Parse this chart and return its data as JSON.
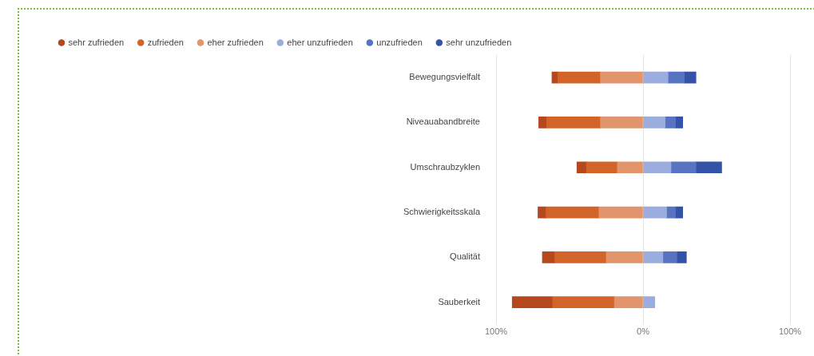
{
  "chart_data": {
    "type": "bar",
    "orientation": "horizontal",
    "stacked": true,
    "categories": [
      "Bewegungsvielfalt",
      "Niveauabandbreite",
      "Umschraubzyklen",
      "Schwierigkeitsskala",
      "Qualität",
      "Sauberkeit"
    ],
    "series": [
      {
        "name": "eher zufrieden",
        "color": "#e2956c",
        "values": [
          -29,
          -29,
          -17.5,
          -30,
          -25,
          -19.5
        ]
      },
      {
        "name": "zufrieden",
        "color": "#d2642a",
        "values": [
          -29,
          -36.5,
          -21,
          -36,
          -35,
          -42
        ]
      },
      {
        "name": "sehr zufrieden",
        "color": "#b5491d",
        "values": [
          -4,
          -5.5,
          -6.5,
          -5.5,
          -8.5,
          -27.5
        ]
      },
      {
        "name": "eher unzufrieden",
        "color": "#9badde",
        "values": [
          17,
          15,
          19,
          16,
          13.5,
          8
        ]
      },
      {
        "name": "unzufrieden",
        "color": "#5873c2",
        "values": [
          11,
          7,
          17,
          6,
          9.5,
          null
        ]
      },
      {
        "name": "sehr unzufrieden",
        "color": "#3453a8",
        "values": [
          8,
          5,
          17.5,
          5,
          6.5,
          null
        ]
      }
    ],
    "xlim": [
      -100,
      100
    ],
    "xticks": [
      {
        "value": -100,
        "label": "100%"
      },
      {
        "value": 0,
        "label": "0%"
      },
      {
        "value": 100,
        "label": "100%"
      }
    ],
    "grid": "x",
    "legend": "top left"
  }
}
